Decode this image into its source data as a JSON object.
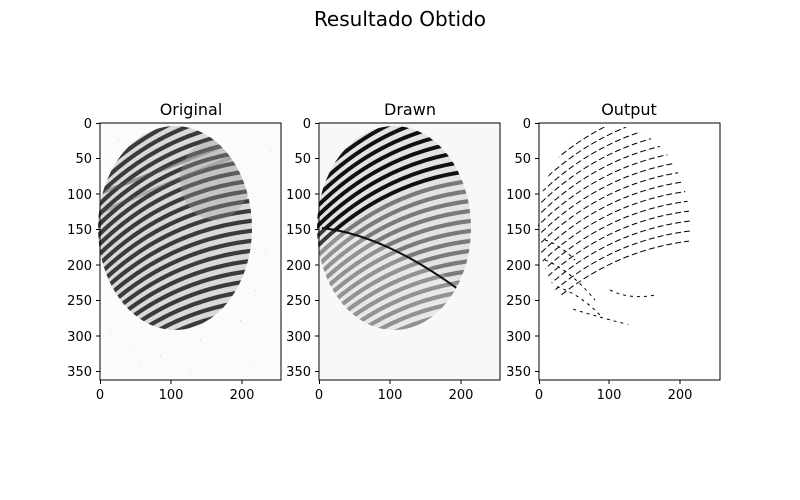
{
  "figure": {
    "suptitle": "Resultado Obtido"
  },
  "panels": [
    {
      "title": "Original",
      "x_ticks": [
        "0",
        "100",
        "200"
      ],
      "y_ticks": [
        "0",
        "50",
        "100",
        "150",
        "200",
        "250",
        "300",
        "350"
      ],
      "image": "fingerprint-grayscale"
    },
    {
      "title": "Drawn",
      "x_ticks": [
        "0",
        "100",
        "200"
      ],
      "y_ticks": [
        "0",
        "50",
        "100",
        "150",
        "200",
        "250",
        "300",
        "350"
      ],
      "image": "fingerprint-with-drawn-ridges"
    },
    {
      "title": "Output",
      "x_ticks": [
        "0",
        "100",
        "200"
      ],
      "y_ticks": [
        "0",
        "50",
        "100",
        "150",
        "200",
        "250",
        "300",
        "350"
      ],
      "image": "fingerprint-thinned-skeleton"
    }
  ],
  "image_extent": {
    "x_max": 256,
    "y_max": 364
  }
}
